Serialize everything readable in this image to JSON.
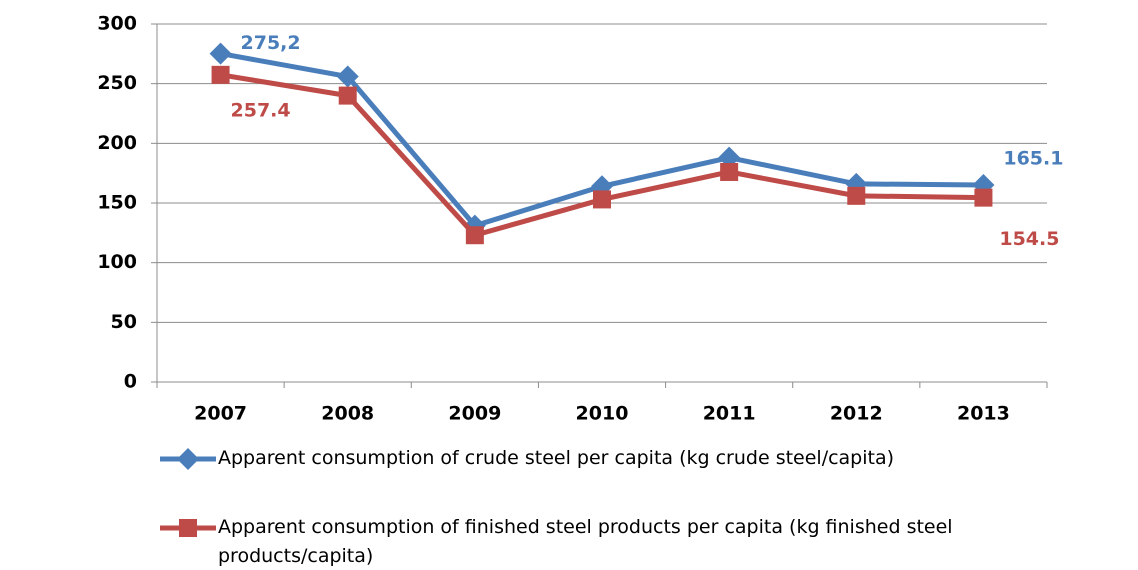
{
  "chart_data": {
    "type": "line",
    "categories": [
      "2007",
      "2008",
      "2009",
      "2010",
      "2011",
      "2012",
      "2013"
    ],
    "series": [
      {
        "name": "Apparent consumption of crude steel per capita (kg crude steel/capita)",
        "color": "#4a7ebb",
        "marker": "diamond",
        "values": [
          275.2,
          256,
          131,
          164,
          188,
          166,
          165.1
        ],
        "value_labels": [
          "275,2",
          null,
          null,
          null,
          null,
          null,
          "165.1"
        ]
      },
      {
        "name": "Apparent consumption of finished steel products per capita (kg finished steel products/capita)",
        "color": "#be4b48",
        "marker": "square",
        "values": [
          257.4,
          240,
          123,
          153,
          176,
          156,
          154.5
        ],
        "value_labels": [
          "257.4",
          null,
          null,
          null,
          null,
          null,
          "154.5"
        ]
      }
    ],
    "ylim": [
      0,
      300
    ],
    "yticks": [
      0,
      50,
      100,
      150,
      200,
      250,
      300
    ],
    "grid": true,
    "legend": "bottom"
  }
}
